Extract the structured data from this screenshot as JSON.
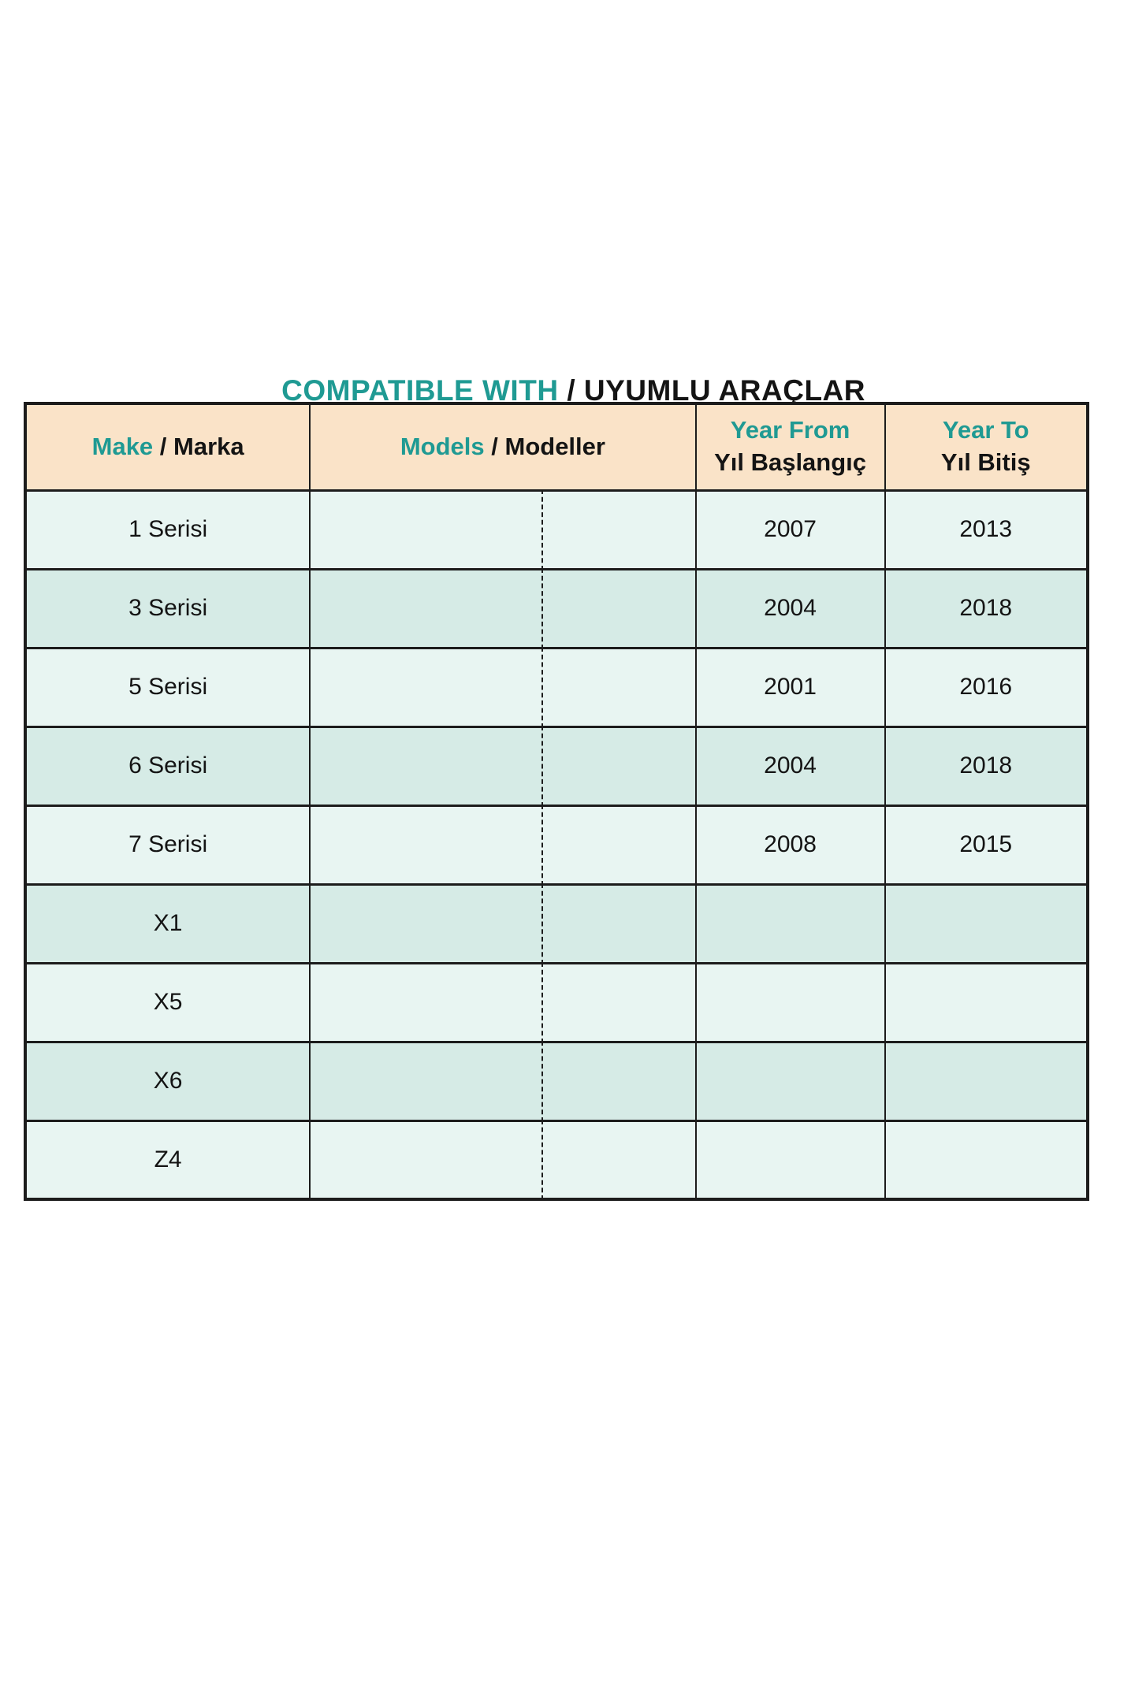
{
  "title": {
    "teal_part": "COMPATIBLE WITH",
    "separator": " / ",
    "black_part": "UYUMLU ARAÇLAR"
  },
  "colors": {
    "teal": "#1f9a93",
    "text": "#141414",
    "border": "#1c1c1c",
    "header_bg": "#fae3c8",
    "row_light": "#e8f5f2",
    "row_dark": "#d6ebe6"
  },
  "table": {
    "headers": {
      "make": {
        "en": "Make",
        "sep": " / ",
        "tr": "Marka"
      },
      "models": {
        "en": "Models",
        "sep": " / ",
        "tr": "Modeller"
      },
      "year_from": {
        "en": "Year From",
        "tr": "Yıl Başlangıç"
      },
      "year_to": {
        "en": "Year To",
        "tr": "Yıl Bitiş"
      }
    },
    "rows": [
      {
        "make": "1 Serisi",
        "models": "",
        "year_from": "2007",
        "year_to": "2013"
      },
      {
        "make": "3 Serisi",
        "models": "",
        "year_from": "2004",
        "year_to": "2018"
      },
      {
        "make": "5 Serisi",
        "models": "",
        "year_from": "2001",
        "year_to": "2016"
      },
      {
        "make": "6 Serisi",
        "models": "",
        "year_from": "2004",
        "year_to": "2018"
      },
      {
        "make": "7 Serisi",
        "models": "",
        "year_from": "2008",
        "year_to": "2015"
      },
      {
        "make": "X1",
        "models": "",
        "year_from": "",
        "year_to": ""
      },
      {
        "make": "X5",
        "models": "",
        "year_from": "",
        "year_to": ""
      },
      {
        "make": "X6",
        "models": "",
        "year_from": "",
        "year_to": ""
      },
      {
        "make": "Z4",
        "models": "",
        "year_from": "",
        "year_to": ""
      }
    ]
  }
}
